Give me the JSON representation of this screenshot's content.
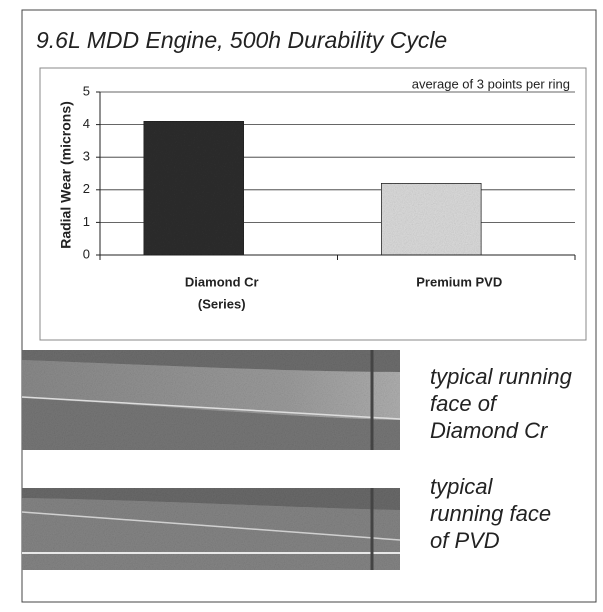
{
  "chart_data": {
    "type": "bar",
    "title": "9.6L MDD Engine, 500h Durability Cycle",
    "annotation": "average of 3 points per ring",
    "ylabel": "Radial Wear (microns)",
    "categories": [
      [
        "Diamond Cr",
        "(Series)"
      ],
      [
        "Premium PVD"
      ]
    ],
    "values": [
      4.1,
      2.2
    ],
    "colors": [
      "#2e2e2e",
      "#dcdcdc"
    ],
    "ylim": [
      0,
      5
    ],
    "yticks": [
      0,
      1,
      2,
      3,
      4,
      5
    ],
    "grid": true
  },
  "photos": [
    {
      "caption": [
        "typical running",
        "face of",
        "Diamond Cr"
      ]
    },
    {
      "caption": [
        "typical",
        "running face",
        "of PVD"
      ]
    }
  ]
}
